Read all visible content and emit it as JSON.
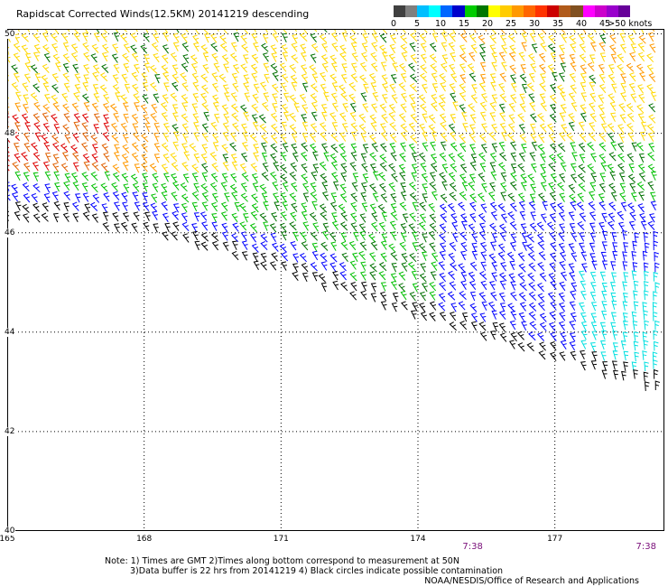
{
  "title": "Rapidscat Corrected Winds(12.5KM) 20141219 descending",
  "legend": {
    "swatches": [
      "#404040",
      "#7f7f7f",
      "#00bfff",
      "#00ffff",
      "#0066ff",
      "#0000cc",
      "#00cc00",
      "#007700",
      "#ffff00",
      "#ffcc00",
      "#ff9900",
      "#ff6600",
      "#ff3300",
      "#cc0000",
      "#b05a1a",
      "#805020",
      "#ff00ff",
      "#cc00cc",
      "#9900cc",
      "#660099"
    ],
    "labels": [
      "0",
      "5",
      "10",
      "15",
      "20",
      "25",
      "30",
      "35",
      "40",
      "45",
      ">50 knots"
    ],
    "barb_colors": {
      "black": "#000000",
      "cyan": "#00e0e0",
      "blue": "#0000ff",
      "green": "#00c000",
      "darkgreen": "#007000",
      "yellow": "#ffd800",
      "orange": "#ff9900",
      "darkorange": "#e06000",
      "red": "#dd0000"
    }
  },
  "axes": {
    "lon_ticks": [
      "165",
      "168",
      "171",
      "174",
      "177"
    ],
    "lat_ticks": [
      "40",
      "42",
      "44",
      "46",
      "48",
      "50"
    ],
    "lon_range": [
      165,
      179.4
    ],
    "lat_range": [
      40,
      50.1
    ]
  },
  "time_labels": [
    {
      "text": "7:38",
      "lon": 175.2
    },
    {
      "text": "7:38",
      "lon": 179.0
    }
  ],
  "notes": {
    "line1": "Note: 1) Times are GMT 2)Times along bottom correspond to measurement at 50N",
    "line2": "3)Data buffer is 22 hrs from 20141219 4) Black circles indicate possible contamination"
  },
  "credit": "NOAA/NESDIS/Office of Research and Applications"
}
